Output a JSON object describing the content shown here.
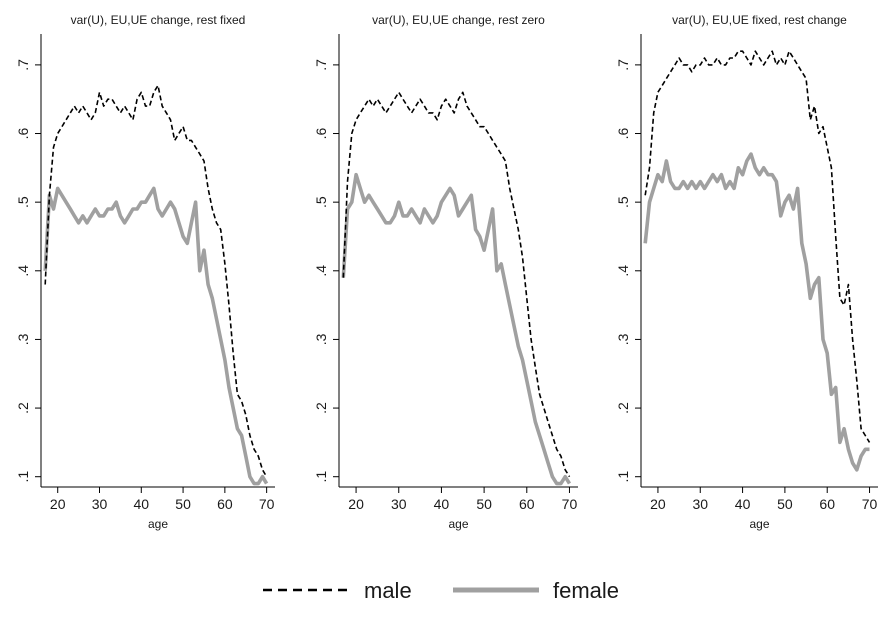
{
  "chart_data": [
    {
      "type": "line",
      "title": "var(U), EU,UE change, rest fixed",
      "xlabel": "age",
      "ylabel": "",
      "xlim": [
        16,
        72
      ],
      "ylim": [
        0.085,
        0.745
      ],
      "xticks": [
        20,
        30,
        40,
        50,
        60,
        70
      ],
      "xtick_labels": [
        "20",
        "30",
        "40",
        "50",
        "60",
        "70"
      ],
      "yticks": [
        0.1,
        0.2,
        0.3,
        0.4,
        0.5,
        0.6,
        0.7
      ],
      "ytick_labels": [
        ".1",
        ".2",
        ".3",
        ".4",
        ".5",
        ".6",
        ".7"
      ],
      "grid": false,
      "x": [
        17,
        18,
        19,
        20,
        21,
        22,
        23,
        24,
        25,
        26,
        27,
        28,
        29,
        30,
        31,
        32,
        33,
        34,
        35,
        36,
        37,
        38,
        39,
        40,
        41,
        42,
        43,
        44,
        45,
        46,
        47,
        48,
        49,
        50,
        51,
        52,
        53,
        54,
        55,
        56,
        57,
        58,
        59,
        60,
        61,
        62,
        63,
        64,
        65,
        66,
        67,
        68,
        69,
        70
      ],
      "series": [
        {
          "name": "male",
          "values": [
            0.38,
            0.51,
            0.58,
            0.6,
            0.61,
            0.62,
            0.63,
            0.64,
            0.63,
            0.64,
            0.63,
            0.62,
            0.63,
            0.66,
            0.64,
            0.65,
            0.65,
            0.64,
            0.63,
            0.64,
            0.63,
            0.62,
            0.65,
            0.66,
            0.64,
            0.64,
            0.66,
            0.67,
            0.64,
            0.63,
            0.62,
            0.59,
            0.6,
            0.61,
            0.59,
            0.59,
            0.58,
            0.57,
            0.56,
            0.52,
            0.49,
            0.47,
            0.46,
            0.41,
            0.35,
            0.28,
            0.22,
            0.21,
            0.19,
            0.16,
            0.14,
            0.13,
            0.11,
            0.1
          ]
        },
        {
          "name": "female",
          "values": [
            0.4,
            0.51,
            0.49,
            0.52,
            0.51,
            0.5,
            0.49,
            0.48,
            0.47,
            0.48,
            0.47,
            0.48,
            0.49,
            0.48,
            0.48,
            0.49,
            0.49,
            0.5,
            0.48,
            0.47,
            0.48,
            0.49,
            0.49,
            0.5,
            0.5,
            0.51,
            0.52,
            0.49,
            0.48,
            0.49,
            0.5,
            0.49,
            0.47,
            0.45,
            0.44,
            0.47,
            0.5,
            0.4,
            0.43,
            0.38,
            0.36,
            0.33,
            0.3,
            0.27,
            0.23,
            0.2,
            0.17,
            0.16,
            0.13,
            0.1,
            0.09,
            0.09,
            0.1,
            0.09
          ]
        }
      ]
    },
    {
      "type": "line",
      "title": "var(U), EU,UE change, rest zero",
      "xlabel": "age",
      "ylabel": "",
      "xlim": [
        16,
        72
      ],
      "ylim": [
        0.085,
        0.745
      ],
      "xticks": [
        20,
        30,
        40,
        50,
        60,
        70
      ],
      "xtick_labels": [
        "20",
        "30",
        "40",
        "50",
        "60",
        "70"
      ],
      "yticks": [
        0.1,
        0.2,
        0.3,
        0.4,
        0.5,
        0.6,
        0.7
      ],
      "ytick_labels": [
        ".1",
        ".2",
        ".3",
        ".4",
        ".5",
        ".6",
        ".7"
      ],
      "grid": false,
      "x": [
        17,
        18,
        19,
        20,
        21,
        22,
        23,
        24,
        25,
        26,
        27,
        28,
        29,
        30,
        31,
        32,
        33,
        34,
        35,
        36,
        37,
        38,
        39,
        40,
        41,
        42,
        43,
        44,
        45,
        46,
        47,
        48,
        49,
        50,
        51,
        52,
        53,
        54,
        55,
        56,
        57,
        58,
        59,
        60,
        61,
        62,
        63,
        64,
        65,
        66,
        67,
        68,
        69,
        70
      ],
      "series": [
        {
          "name": "male",
          "values": [
            0.39,
            0.53,
            0.6,
            0.62,
            0.63,
            0.64,
            0.65,
            0.64,
            0.65,
            0.64,
            0.63,
            0.64,
            0.65,
            0.66,
            0.65,
            0.64,
            0.63,
            0.64,
            0.65,
            0.64,
            0.63,
            0.63,
            0.62,
            0.64,
            0.65,
            0.64,
            0.63,
            0.65,
            0.66,
            0.64,
            0.63,
            0.62,
            0.61,
            0.61,
            0.6,
            0.59,
            0.58,
            0.57,
            0.56,
            0.52,
            0.49,
            0.46,
            0.42,
            0.36,
            0.3,
            0.26,
            0.22,
            0.2,
            0.18,
            0.16,
            0.14,
            0.13,
            0.11,
            0.1
          ]
        },
        {
          "name": "female",
          "values": [
            0.39,
            0.49,
            0.5,
            0.54,
            0.52,
            0.5,
            0.51,
            0.5,
            0.49,
            0.48,
            0.47,
            0.47,
            0.48,
            0.5,
            0.48,
            0.48,
            0.49,
            0.48,
            0.47,
            0.49,
            0.48,
            0.47,
            0.48,
            0.5,
            0.51,
            0.52,
            0.51,
            0.48,
            0.49,
            0.5,
            0.51,
            0.46,
            0.45,
            0.43,
            0.46,
            0.49,
            0.4,
            0.41,
            0.38,
            0.35,
            0.32,
            0.29,
            0.27,
            0.24,
            0.21,
            0.18,
            0.16,
            0.14,
            0.12,
            0.1,
            0.09,
            0.09,
            0.1,
            0.09
          ]
        }
      ]
    },
    {
      "type": "line",
      "title": "var(U), EU,UE fixed, rest change",
      "xlabel": "age",
      "ylabel": "",
      "xlim": [
        16,
        72
      ],
      "ylim": [
        0.085,
        0.745
      ],
      "xticks": [
        20,
        30,
        40,
        50,
        60,
        70
      ],
      "xtick_labels": [
        "20",
        "30",
        "40",
        "50",
        "60",
        "70"
      ],
      "yticks": [
        0.1,
        0.2,
        0.3,
        0.4,
        0.5,
        0.6,
        0.7
      ],
      "ytick_labels": [
        ".1",
        ".2",
        ".3",
        ".4",
        ".5",
        ".6",
        ".7"
      ],
      "grid": false,
      "x": [
        17,
        18,
        19,
        20,
        21,
        22,
        23,
        24,
        25,
        26,
        27,
        28,
        29,
        30,
        31,
        32,
        33,
        34,
        35,
        36,
        37,
        38,
        39,
        40,
        41,
        42,
        43,
        44,
        45,
        46,
        47,
        48,
        49,
        50,
        51,
        52,
        53,
        54,
        55,
        56,
        57,
        58,
        59,
        60,
        61,
        62,
        63,
        64,
        65,
        66,
        67,
        68,
        69,
        70
      ],
      "series": [
        {
          "name": "male",
          "values": [
            0.51,
            0.55,
            0.63,
            0.66,
            0.67,
            0.68,
            0.69,
            0.7,
            0.71,
            0.7,
            0.7,
            0.69,
            0.7,
            0.7,
            0.71,
            0.7,
            0.7,
            0.71,
            0.7,
            0.7,
            0.71,
            0.71,
            0.72,
            0.72,
            0.71,
            0.7,
            0.72,
            0.71,
            0.7,
            0.71,
            0.72,
            0.7,
            0.71,
            0.7,
            0.72,
            0.71,
            0.7,
            0.69,
            0.68,
            0.62,
            0.64,
            0.6,
            0.61,
            0.58,
            0.55,
            0.45,
            0.36,
            0.35,
            0.38,
            0.3,
            0.24,
            0.17,
            0.16,
            0.15
          ]
        },
        {
          "name": "female",
          "values": [
            0.44,
            0.5,
            0.52,
            0.54,
            0.53,
            0.56,
            0.53,
            0.52,
            0.52,
            0.53,
            0.52,
            0.53,
            0.52,
            0.53,
            0.52,
            0.53,
            0.54,
            0.53,
            0.54,
            0.52,
            0.53,
            0.52,
            0.55,
            0.54,
            0.56,
            0.57,
            0.55,
            0.54,
            0.55,
            0.54,
            0.54,
            0.53,
            0.48,
            0.5,
            0.51,
            0.49,
            0.52,
            0.44,
            0.41,
            0.36,
            0.38,
            0.39,
            0.3,
            0.28,
            0.22,
            0.23,
            0.15,
            0.17,
            0.14,
            0.12,
            0.11,
            0.13,
            0.14,
            0.14
          ]
        }
      ]
    }
  ],
  "legend": {
    "placement": "bottom",
    "items": [
      {
        "label": "male",
        "color": "#000000",
        "style": "dashed"
      },
      {
        "label": "female",
        "color": "#a0a0a0",
        "style": "solid"
      }
    ]
  },
  "colors": {
    "male": "#000000",
    "female": "#a0a0a0",
    "axis": "#000000",
    "text": "#1a1a1a"
  }
}
